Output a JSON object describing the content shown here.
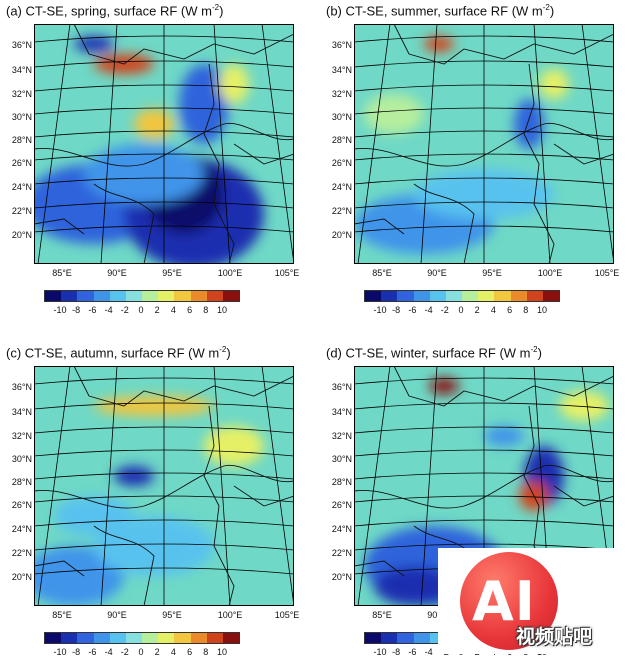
{
  "colorbar": {
    "ticks": [
      "-10",
      "-8",
      "-6",
      "-4",
      "-2",
      "0",
      "2",
      "4",
      "6",
      "8",
      "10"
    ],
    "colors": [
      "#0a0a6a",
      "#1a2fb0",
      "#2f64dc",
      "#3f94ea",
      "#58c2ee",
      "#86e0e0",
      "#b6ee9e",
      "#e6f066",
      "#f2c63e",
      "#ea8a2a",
      "#d0441c",
      "#8a1010"
    ]
  },
  "lat_labels": [
    "36°N",
    "34°N",
    "32°N",
    "30°N",
    "28°N",
    "26°N",
    "24°N",
    "22°N",
    "20°N"
  ],
  "lon_labels": [
    "85°E",
    "90°E",
    "95°E",
    "100°E",
    "105°E"
  ],
  "panels": [
    {
      "id": "a",
      "label": "(a)",
      "product": "CT-SE",
      "season": "spring",
      "quantity": "surface RF",
      "units_prefix": "(W m",
      "units_exp": "-2",
      "units_suffix": ")"
    },
    {
      "id": "b",
      "label": "(b)",
      "product": "CT-SE",
      "season": "summer",
      "quantity": "surface RF",
      "units_prefix": "(W m",
      "units_exp": "-2",
      "units_suffix": ")"
    },
    {
      "id": "c",
      "label": "(c)",
      "product": "CT-SE",
      "season": "autumn",
      "quantity": "surface RF",
      "units_prefix": "(W m",
      "units_exp": "-2",
      "units_suffix": ")"
    },
    {
      "id": "d",
      "label": "(d)",
      "product": "CT-SE",
      "season": "winter",
      "quantity": "surface RF",
      "units_prefix": "(W m",
      "units_exp": "-2",
      "units_suffix": ")"
    }
  ],
  "watermark": {
    "mark": "AI",
    "caption": "视频贴吧"
  }
}
